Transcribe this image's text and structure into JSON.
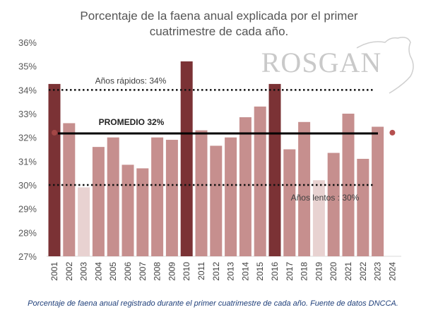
{
  "chart_data": {
    "type": "bar",
    "title": "Porcentaje de la faena anual explicada por el primer cuatrimestre de cada año.",
    "title_lines": [
      "Porcentaje de la faena anual explicada por el primer",
      "cuatrimestre de cada año."
    ],
    "xlabel": "",
    "ylabel": "",
    "ylim": [
      27,
      36
    ],
    "yticks": [
      27,
      28,
      29,
      30,
      31,
      32,
      33,
      34,
      35,
      36
    ],
    "ytick_labels": [
      "27%",
      "28%",
      "29%",
      "30%",
      "31%",
      "32%",
      "33%",
      "34%",
      "35%",
      "36%"
    ],
    "categories": [
      "2001",
      "2002",
      "2003",
      "2004",
      "2005",
      "2006",
      "2007",
      "2008",
      "2009",
      "2010",
      "2011",
      "2012",
      "2013",
      "2014",
      "2015",
      "2016",
      "2017",
      "2018",
      "2019",
      "2020",
      "2021",
      "2022",
      "2023",
      "2024"
    ],
    "values": [
      34.25,
      32.6,
      29.9,
      31.6,
      32.0,
      30.85,
      30.7,
      32.0,
      31.9,
      35.2,
      32.3,
      31.65,
      32.0,
      32.85,
      33.3,
      34.25,
      31.5,
      32.65,
      30.2,
      31.35,
      33.0,
      31.1,
      32.45,
      null
    ],
    "categories_kind": [
      "fast",
      "normal",
      "slow",
      "normal",
      "normal",
      "normal",
      "normal",
      "normal",
      "normal",
      "fast",
      "normal",
      "normal",
      "normal",
      "normal",
      "normal",
      "fast",
      "normal",
      "normal",
      "slow",
      "normal",
      "normal",
      "normal",
      "normal",
      "point"
    ],
    "point_2024": 32.2,
    "reference_lines": [
      {
        "label": "Años rápidos: 34%",
        "value": 34,
        "style": "dotted"
      },
      {
        "label": "PROMEDIO 32%",
        "value": 32.17,
        "style": "solid"
      },
      {
        "label": "Años lentos : 30%",
        "value": 30,
        "style": "dotted"
      }
    ],
    "colors": {
      "fast": "#7b3235",
      "normal": "#c68f8e",
      "slow": "#e8d2d1",
      "point": "#b5504f"
    },
    "grid": false,
    "legend": "none"
  },
  "logo": "ROSGAN",
  "caption": "Porcentaje de faena anual registrado durante el primer cuatrimestre de cada año. Fuente de datos DNCCA."
}
